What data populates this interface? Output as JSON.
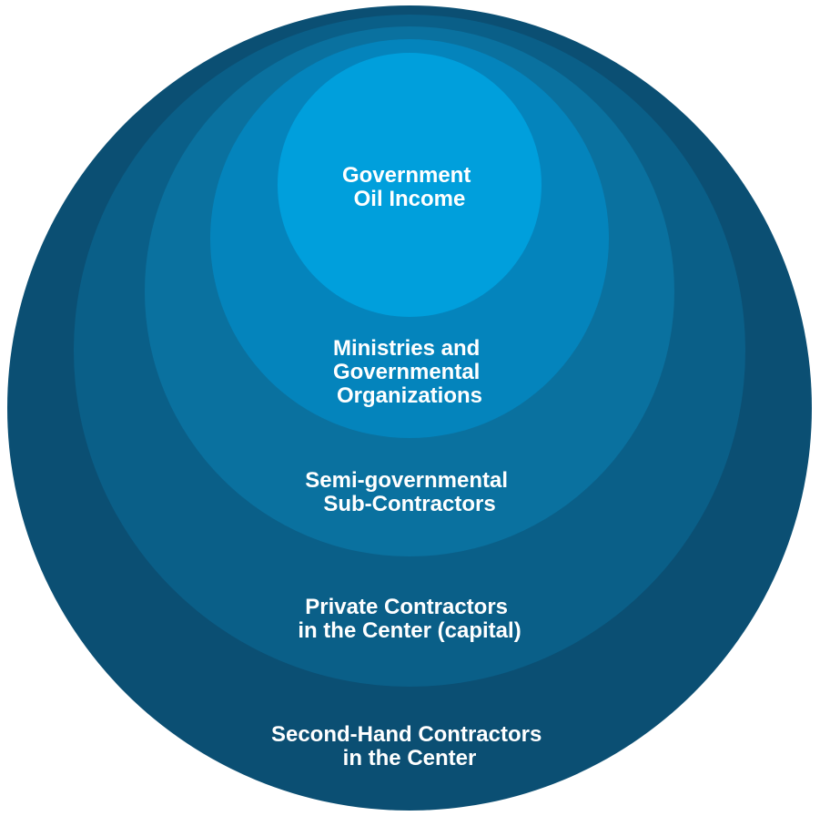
{
  "diagram": {
    "type": "nested-circles",
    "layers": [
      {
        "lines": [
          "Second-Hand Contractors",
          "in the Center"
        ],
        "color": "#0b4f73"
      },
      {
        "lines": [
          "Private Contractors",
          "in the Center (capital)"
        ],
        "color": "#0a5f88"
      },
      {
        "lines": [
          "Semi-governmental",
          "Sub-Contractors"
        ],
        "color": "#0a719f"
      },
      {
        "lines": [
          "Ministries and",
          "Governmental",
          "Organizations"
        ],
        "color": "#0484bc"
      },
      {
        "lines": [
          "Government",
          "Oil Income"
        ],
        "color": "#009fdc"
      }
    ]
  }
}
